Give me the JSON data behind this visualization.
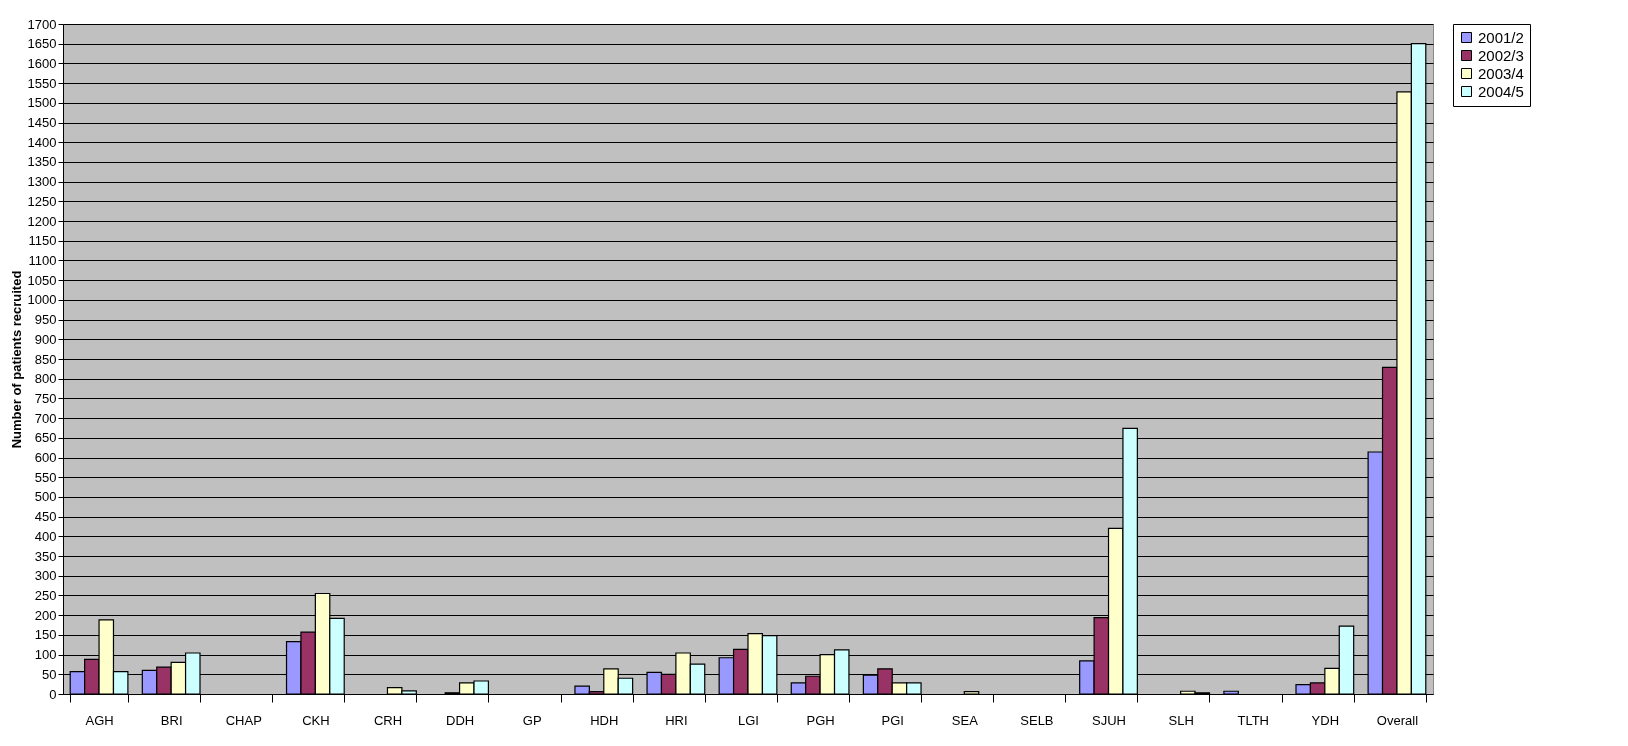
{
  "chart_data": {
    "type": "bar",
    "ylabel": "Number of patients recruited",
    "categories": [
      "AGH",
      "BRI",
      "CHAP",
      "CKH",
      "CRH",
      "DDH",
      "GP",
      "HDH",
      "HRI",
      "LGI",
      "PGH",
      "PGI",
      "SEA",
      "SELB",
      "SJUH",
      "SLH",
      "TLTH",
      "YDH",
      "Overall"
    ],
    "series": [
      {
        "name": "2001/2",
        "color": "#9999ff",
        "values": [
          57,
          60,
          null,
          133,
          null,
          null,
          null,
          20,
          55,
          92,
          28,
          48,
          null,
          null,
          84,
          null,
          7,
          24,
          614
        ]
      },
      {
        "name": "2002/3",
        "color": "#993366",
        "values": [
          88,
          68,
          null,
          157,
          null,
          3,
          null,
          6,
          50,
          113,
          45,
          64,
          null,
          null,
          194,
          null,
          null,
          28,
          829
        ]
      },
      {
        "name": "2003/4",
        "color": "#ffffcc",
        "values": [
          188,
          80,
          null,
          255,
          16,
          28,
          null,
          64,
          104,
          153,
          100,
          28,
          6,
          null,
          420,
          7,
          null,
          65,
          1528
        ]
      },
      {
        "name": "2004/5",
        "color": "#ccffff",
        "values": [
          57,
          104,
          null,
          192,
          8,
          33,
          null,
          40,
          76,
          148,
          112,
          28,
          null,
          null,
          674,
          3,
          null,
          172,
          1650
        ]
      }
    ],
    "ylim": [
      0,
      1700
    ],
    "yticks": [
      0,
      50,
      100,
      150,
      200,
      250,
      300,
      350,
      400,
      450,
      500,
      550,
      600,
      650,
      700,
      750,
      800,
      850,
      900,
      950,
      1000,
      1050,
      1100,
      1150,
      1200,
      1250,
      1300,
      1350,
      1400,
      1450,
      1500,
      1550,
      1600,
      1650,
      1700
    ],
    "grid": "y",
    "legend": "right"
  }
}
